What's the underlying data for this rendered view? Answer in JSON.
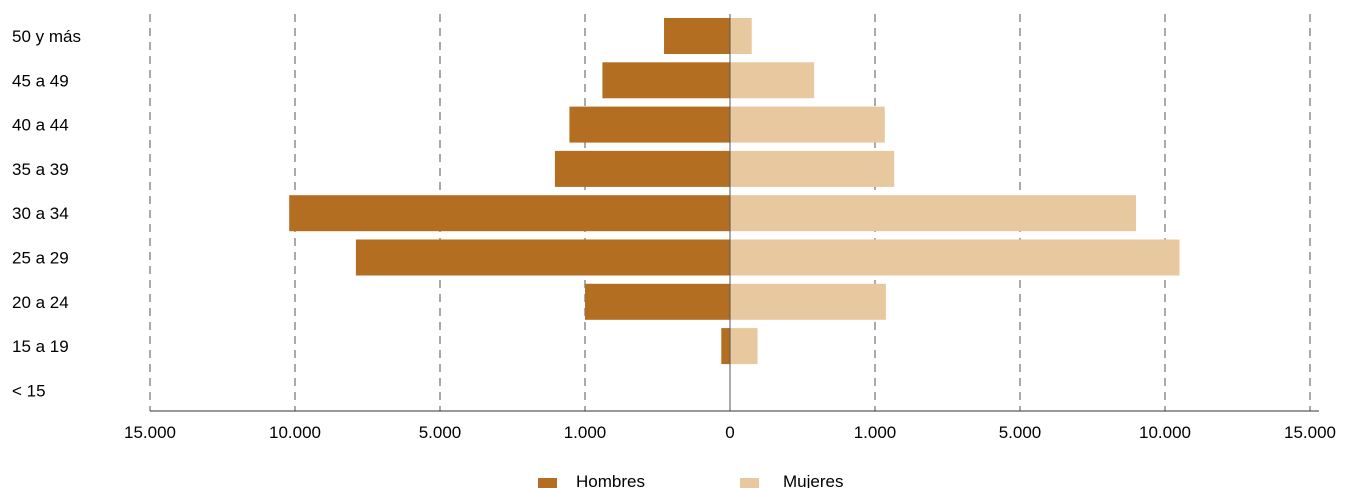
{
  "chart_data": {
    "type": "bar",
    "orientation": "horizontal",
    "layout": "population-pyramid",
    "categories": [
      "50 y más",
      "45 a 49",
      "40 a 44",
      "35 a 39",
      "30 a 34",
      "25 a 29",
      "20 a 24",
      "15 a 19",
      "<15"
    ],
    "category_labels": [
      "50  y  más",
      "45  a  49",
      "40  a  44",
      "35  a  39",
      "30  a  34",
      "25  a  29",
      "20  a  24",
      "15  a  19",
      "< 15"
    ],
    "series": [
      {
        "name": "Hombres",
        "side": "left",
        "color": "#b36e22",
        "values": [
          455,
          880,
          1430,
          1830,
          10200,
          7900,
          1000,
          60,
          0
        ]
      },
      {
        "name": "Mujeres",
        "side": "right",
        "color": "#e8c89f",
        "values": [
          150,
          580,
          1270,
          1530,
          9000,
          10500,
          1300,
          190,
          0
        ]
      }
    ],
    "xticks": [
      {
        "label": "15.000",
        "pos": -4
      },
      {
        "label": "10.000",
        "pos": -3
      },
      {
        "label": "5.000",
        "pos": -2
      },
      {
        "label": "1.000",
        "pos": -1
      },
      {
        "label": "0",
        "pos": 0
      },
      {
        "label": "1.000",
        "pos": 1
      },
      {
        "label": "5.000",
        "pos": 2
      },
      {
        "label": "10.000",
        "pos": 3
      },
      {
        "label": "15.000",
        "pos": 4
      }
    ],
    "axis_scale": "piecewise-linear",
    "axis_breakpoints": [
      0,
      1000,
      5000,
      10000,
      15000
    ],
    "grid": "vertical-dashed",
    "legend": "bottom-center"
  }
}
